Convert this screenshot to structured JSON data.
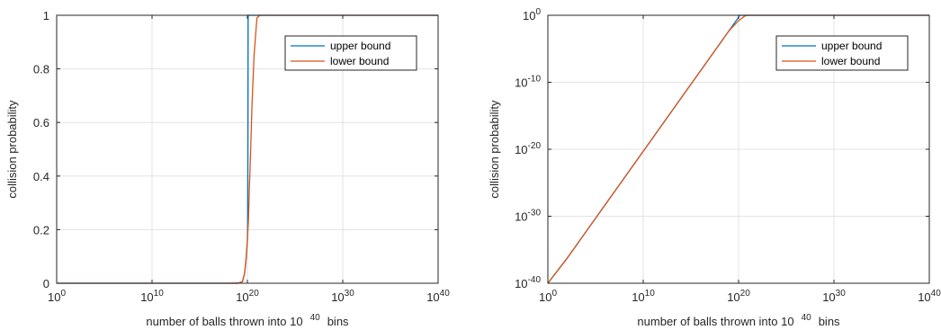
{
  "colors": {
    "upper": "#0072BD",
    "lower": "#D95319",
    "grid": "#e3e3e3",
    "axis": "#262626"
  },
  "chart_data": [
    {
      "type": "line",
      "xscale": "log",
      "yscale": "linear",
      "xlim": [
        1,
        1e+40
      ],
      "ylim": [
        0,
        1
      ],
      "grid": true,
      "legend_position": "top-right",
      "xlabel": {
        "prefix": "number of balls thrown into 10",
        "exp": "40",
        "suffix": "bins"
      },
      "ylabel": "collision probability",
      "xticks": [
        {
          "value": 1,
          "base": "10",
          "exp": "0"
        },
        {
          "value": 10000000000.0,
          "base": "10",
          "exp": "10"
        },
        {
          "value": 1e+20,
          "base": "10",
          "exp": "20"
        },
        {
          "value": 1e+30,
          "base": "10",
          "exp": "30"
        },
        {
          "value": 1e+40,
          "base": "10",
          "exp": "40"
        }
      ],
      "yticks": [
        {
          "value": 0,
          "label": "0"
        },
        {
          "value": 0.2,
          "label": "0.2"
        },
        {
          "value": 0.4,
          "label": "0.4"
        },
        {
          "value": 0.6,
          "label": "0.6"
        },
        {
          "value": 0.8,
          "label": "0.8"
        },
        {
          "value": 1,
          "label": "1"
        }
      ],
      "series": [
        {
          "name": "upper bound",
          "color_key": "upper",
          "x": [
            1,
            100000.0,
            10000000000.0,
            1000000000000000.0,
            1e+18,
            1e+19,
            3e+19,
            5e+19,
            7e+19,
            8e+19,
            9e+19,
            1e+20,
            1.05e+20,
            1.1e+20,
            1.15e+20,
            1.2e+20,
            1.4e+20,
            2e+20,
            1e+22,
            1e+30,
            1e+40
          ],
          "y": [
            0,
            0,
            0,
            0,
            0,
            0.0002,
            0.006,
            0.0352,
            0.0834,
            0.1075,
            0.1353,
            0.16,
            0.2,
            0.34,
            0.55,
            1,
            1,
            1,
            1,
            1,
            1
          ]
        },
        {
          "name": "lower bound",
          "color_key": "lower",
          "x": [
            1,
            100000.0,
            10000000000.0,
            1000000000000000.0,
            1e+18,
            1e+19,
            3e+19,
            5e+19,
            7e+19,
            1e+20,
            1.3e+20,
            1.6e+20,
            2e+20,
            3e+20,
            5e+20,
            1e+21,
            2e+21,
            1e+22,
            1e+30,
            1e+40
          ],
          "y": [
            0,
            0,
            0,
            0,
            0,
            0.0002,
            0.006,
            0.0352,
            0.0834,
            0.16,
            0.24,
            0.35,
            0.45,
            0.66,
            0.85,
            0.99,
            1,
            1,
            1,
            1
          ]
        }
      ]
    },
    {
      "type": "line",
      "xscale": "log",
      "yscale": "log",
      "xlim": [
        1,
        1e+40
      ],
      "ylim": [
        1e-40,
        1
      ],
      "grid": true,
      "legend_position": "top-right",
      "xlabel": {
        "prefix": "number of balls thrown into 10",
        "exp": "40",
        "suffix": "bins"
      },
      "ylabel": "collision probability",
      "xticks": [
        {
          "value": 1,
          "base": "10",
          "exp": "0"
        },
        {
          "value": 10000000000.0,
          "base": "10",
          "exp": "10"
        },
        {
          "value": 1e+20,
          "base": "10",
          "exp": "20"
        },
        {
          "value": 1e+30,
          "base": "10",
          "exp": "30"
        },
        {
          "value": 1e+40,
          "base": "10",
          "exp": "40"
        }
      ],
      "yticks": [
        {
          "value": 1e-40,
          "base": "10",
          "exp": "-40"
        },
        {
          "value": 1e-30,
          "base": "10",
          "exp": "-30"
        },
        {
          "value": 1e-20,
          "base": "10",
          "exp": "-20"
        },
        {
          "value": 1e-10,
          "base": "10",
          "exp": "-10"
        },
        {
          "value": 1,
          "base": "10",
          "exp": "0"
        }
      ],
      "series": [
        {
          "name": "upper bound",
          "color_key": "upper",
          "x": [
            1,
            100.0,
            100000.0,
            10000000000.0,
            1000000000000000.0,
            1e+19,
            1e+20,
            1.2e+20,
            1e+22,
            1e+30,
            1e+40
          ],
          "y": [
            1e-40,
            5e-37,
            5e-31,
            5e-21,
            5e-11,
            0.005,
            0.5,
            1,
            1,
            1,
            1
          ]
        },
        {
          "name": "lower bound",
          "color_key": "lower",
          "x": [
            1,
            100.0,
            100000.0,
            10000000000.0,
            1000000000000000.0,
            1e+16,
            1e+19,
            1e+20,
            5e+20,
            1e+21,
            1e+22,
            1e+30,
            1e+40
          ],
          "y": [
            1e-40,
            5e-37,
            5e-31,
            5e-21,
            5e-11,
            5e-09,
            0.005,
            0.16,
            0.85,
            1,
            1,
            1,
            1
          ]
        }
      ]
    }
  ]
}
